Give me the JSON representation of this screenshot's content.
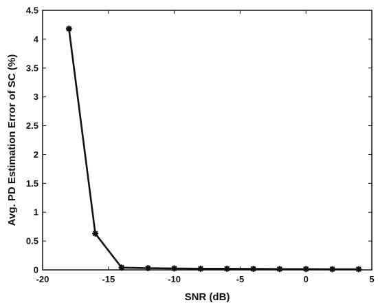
{
  "chart_data": {
    "type": "line",
    "xlabel": "SNR (dB)",
    "ylabel": "Avg. PD Estimation Error of SC (%)",
    "xlim": [
      -20,
      5
    ],
    "ylim": [
      0,
      4.5
    ],
    "x_ticks": [
      -20,
      -15,
      -10,
      -5,
      0,
      5
    ],
    "y_ticks": [
      0,
      0.5,
      1,
      1.5,
      2,
      2.5,
      3,
      3.5,
      4,
      4.5
    ],
    "grid": false,
    "series": [
      {
        "color": "#111111",
        "marker": "star",
        "x": [
          -18,
          -16,
          -14,
          -12,
          -10,
          -8,
          -6,
          -4,
          -2,
          0,
          2,
          4
        ],
        "y": [
          4.18,
          0.63,
          0.04,
          0.03,
          0.025,
          0.02,
          0.02,
          0.018,
          0.015,
          0.015,
          0.012,
          0.012
        ]
      }
    ]
  }
}
